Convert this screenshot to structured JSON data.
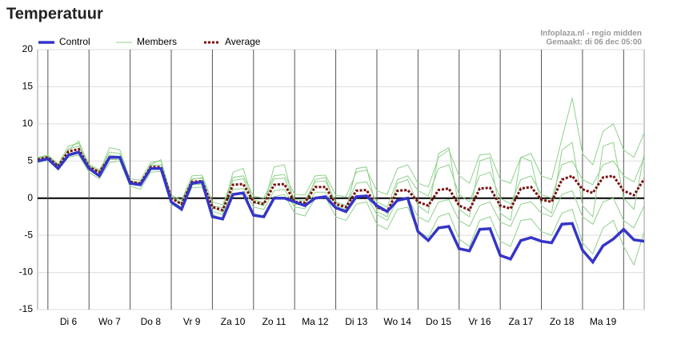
{
  "chart_data": {
    "type": "line",
    "title": "Temperatuur",
    "source": "Infoplaza.nl - regio midden",
    "created": "Gemaakt: di 06 dec 05:00",
    "xlim": [
      0,
      59
    ],
    "xticks": [
      1,
      5,
      9,
      13,
      17,
      21,
      25,
      29,
      33,
      37,
      41,
      45,
      49,
      53,
      57
    ],
    "day_labels": [
      "Di 6",
      "Wo 7",
      "Do 8",
      "Vr 9",
      "Za 10",
      "Zo 11",
      "Ma 12",
      "Di 13",
      "Wo 14",
      "Do 15",
      "Vr 16",
      "Za 17",
      "Zo 18",
      "Ma 19"
    ],
    "ylim": [
      -15,
      20
    ],
    "yticks": [
      -15,
      -10,
      -5,
      0,
      5,
      10,
      15,
      20
    ],
    "grid": true,
    "series": [
      {
        "name": "Control",
        "color": "#3535c8",
        "dash": false,
        "values": [
          5.0,
          5.3,
          4.0,
          5.8,
          6.2,
          4.0,
          3.0,
          5.5,
          5.5,
          2.0,
          1.8,
          4.0,
          4.0,
          -0.5,
          -1.5,
          2.0,
          2.2,
          -2.5,
          -2.8,
          0.5,
          0.7,
          -2.3,
          -2.5,
          0.0,
          0.0,
          -0.5,
          -1.0,
          0.0,
          0.2,
          -1.3,
          -1.8,
          0.2,
          0.3,
          -1.0,
          -1.8,
          -0.3,
          0.0,
          -4.5,
          -5.7,
          -4.0,
          -3.8,
          -6.8,
          -7.1,
          -4.2,
          -4.1,
          -7.7,
          -8.2,
          -5.7,
          -5.3,
          -5.8,
          -6.0,
          -3.5,
          -3.4,
          -7.0,
          -8.6,
          -6.4,
          -5.5,
          -4.2,
          -5.6,
          -5.8
        ]
      },
      {
        "name": "Average",
        "color": "#7a1010",
        "dash": true,
        "values": [
          5.2,
          5.5,
          4.3,
          6.3,
          6.6,
          4.2,
          3.5,
          5.5,
          5.5,
          2.2,
          2.0,
          4.2,
          4.2,
          0.0,
          -0.8,
          2.2,
          2.3,
          -1.2,
          -1.6,
          1.8,
          1.9,
          -0.5,
          -0.8,
          1.8,
          1.9,
          -0.5,
          -0.6,
          1.5,
          1.5,
          -0.8,
          -1.2,
          1.0,
          1.1,
          -1.2,
          -1.8,
          1.0,
          1.1,
          -0.5,
          -1.0,
          1.1,
          1.3,
          -1.0,
          -1.6,
          1.3,
          1.4,
          -1.0,
          -1.4,
          1.3,
          1.5,
          -0.2,
          -0.5,
          2.5,
          3.0,
          1.2,
          0.7,
          2.8,
          3.0,
          1.0,
          0.4,
          2.6
        ]
      }
    ],
    "members": {
      "name": "Members",
      "color": "#8fd18a",
      "values": [
        [
          5.5,
          5.8,
          4.6,
          7.0,
          7.4,
          4.6,
          3.8,
          6.2,
          6.0,
          2.6,
          2.4,
          4.8,
          5.0,
          0.4,
          -0.3,
          3.0,
          3.1,
          -0.5,
          -0.9,
          2.8,
          3.0,
          0.3,
          0.0,
          3.0,
          3.2,
          0.5,
          0.4,
          3.0,
          3.1,
          0.4,
          0.2,
          3.5,
          3.8,
          1.0,
          0.5,
          4.0,
          4.5,
          2.0,
          1.5,
          5.5,
          6.5,
          3.0,
          2.0,
          5.8,
          6.0,
          2.5,
          2.0,
          5.5,
          6.0,
          3.0,
          2.5,
          8.0,
          13.5,
          6.0,
          4.5,
          9.0,
          10.0,
          6.5,
          5.5,
          8.8
        ],
        [
          4.8,
          5.1,
          3.8,
          5.5,
          5.8,
          3.5,
          2.6,
          4.8,
          5.0,
          1.6,
          1.2,
          3.5,
          3.6,
          -0.8,
          -1.6,
          1.4,
          1.5,
          -2.2,
          -2.8,
          0.6,
          0.8,
          -2.0,
          -2.5,
          0.2,
          0.5,
          -2.0,
          -2.4,
          0.0,
          0.2,
          -2.5,
          -3.0,
          -0.8,
          -0.5,
          -3.5,
          -4.2,
          -1.5,
          -1.2,
          -4.5,
          -5.2,
          -2.5,
          -2.0,
          -5.5,
          -6.5,
          -3.0,
          -2.5,
          -5.8,
          -6.5,
          -3.0,
          -2.8,
          -4.5,
          -5.0,
          -2.0,
          -1.5,
          -6.0,
          -7.5,
          -4.0,
          -3.0,
          -6.5,
          -9.0,
          -4.5
        ],
        [
          5.3,
          5.6,
          4.5,
          6.6,
          7.0,
          4.4,
          3.6,
          5.8,
          5.6,
          2.3,
          2.1,
          4.4,
          4.5,
          0.2,
          -0.6,
          2.6,
          2.7,
          -1.0,
          -1.3,
          2.4,
          2.6,
          -0.2,
          -0.6,
          2.6,
          2.7,
          -0.2,
          -0.3,
          2.2,
          2.3,
          -0.5,
          -1.0,
          2.0,
          2.2,
          -0.5,
          -1.2,
          2.5,
          3.0,
          1.0,
          0.3,
          4.0,
          4.5,
          0.5,
          -0.5,
          3.0,
          3.5,
          0.0,
          -0.8,
          2.5,
          3.0,
          0.5,
          0.0,
          4.5,
          5.0,
          2.5,
          1.8,
          4.5,
          5.0,
          3.0,
          2.2,
          5.5
        ],
        [
          5.0,
          5.4,
          4.0,
          6.0,
          6.3,
          4.0,
          3.2,
          5.2,
          5.2,
          1.9,
          1.7,
          3.9,
          3.9,
          -0.4,
          -1.2,
          1.8,
          1.9,
          -1.8,
          -2.2,
          1.2,
          1.3,
          -1.2,
          -1.5,
          1.0,
          1.2,
          -1.2,
          -1.4,
          0.8,
          0.8,
          -1.4,
          -2.0,
          0.2,
          0.3,
          -2.2,
          -3.0,
          -0.2,
          0.0,
          -2.5,
          -3.2,
          -0.5,
          -0.2,
          -3.0,
          -3.8,
          -1.0,
          -0.5,
          -3.2,
          -3.8,
          -0.8,
          -0.5,
          -2.0,
          -2.5,
          0.5,
          1.0,
          -2.5,
          -3.5,
          -0.5,
          0.0,
          -3.0,
          -4.0,
          -1.0
        ],
        [
          5.4,
          5.7,
          4.4,
          6.5,
          7.7,
          4.3,
          3.4,
          6.8,
          6.5,
          2.4,
          1.9,
          4.5,
          5.2,
          0.1,
          -0.9,
          2.5,
          2.8,
          -1.2,
          -1.9,
          3.5,
          4.0,
          -0.6,
          -1.0,
          4.2,
          4.5,
          -0.8,
          -1.0,
          2.5,
          2.8,
          -1.0,
          -1.5,
          4.0,
          4.2,
          -1.8,
          -2.5,
          2.0,
          2.5,
          -1.0,
          -2.0,
          6.0,
          6.8,
          -1.5,
          -2.5,
          5.0,
          5.5,
          -2.0,
          -3.0,
          5.5,
          5.0,
          -1.0,
          -2.0,
          6.5,
          7.5,
          -1.0,
          -2.5,
          7.0,
          7.5,
          0.0,
          -1.5,
          6.0
        ]
      ]
    }
  }
}
